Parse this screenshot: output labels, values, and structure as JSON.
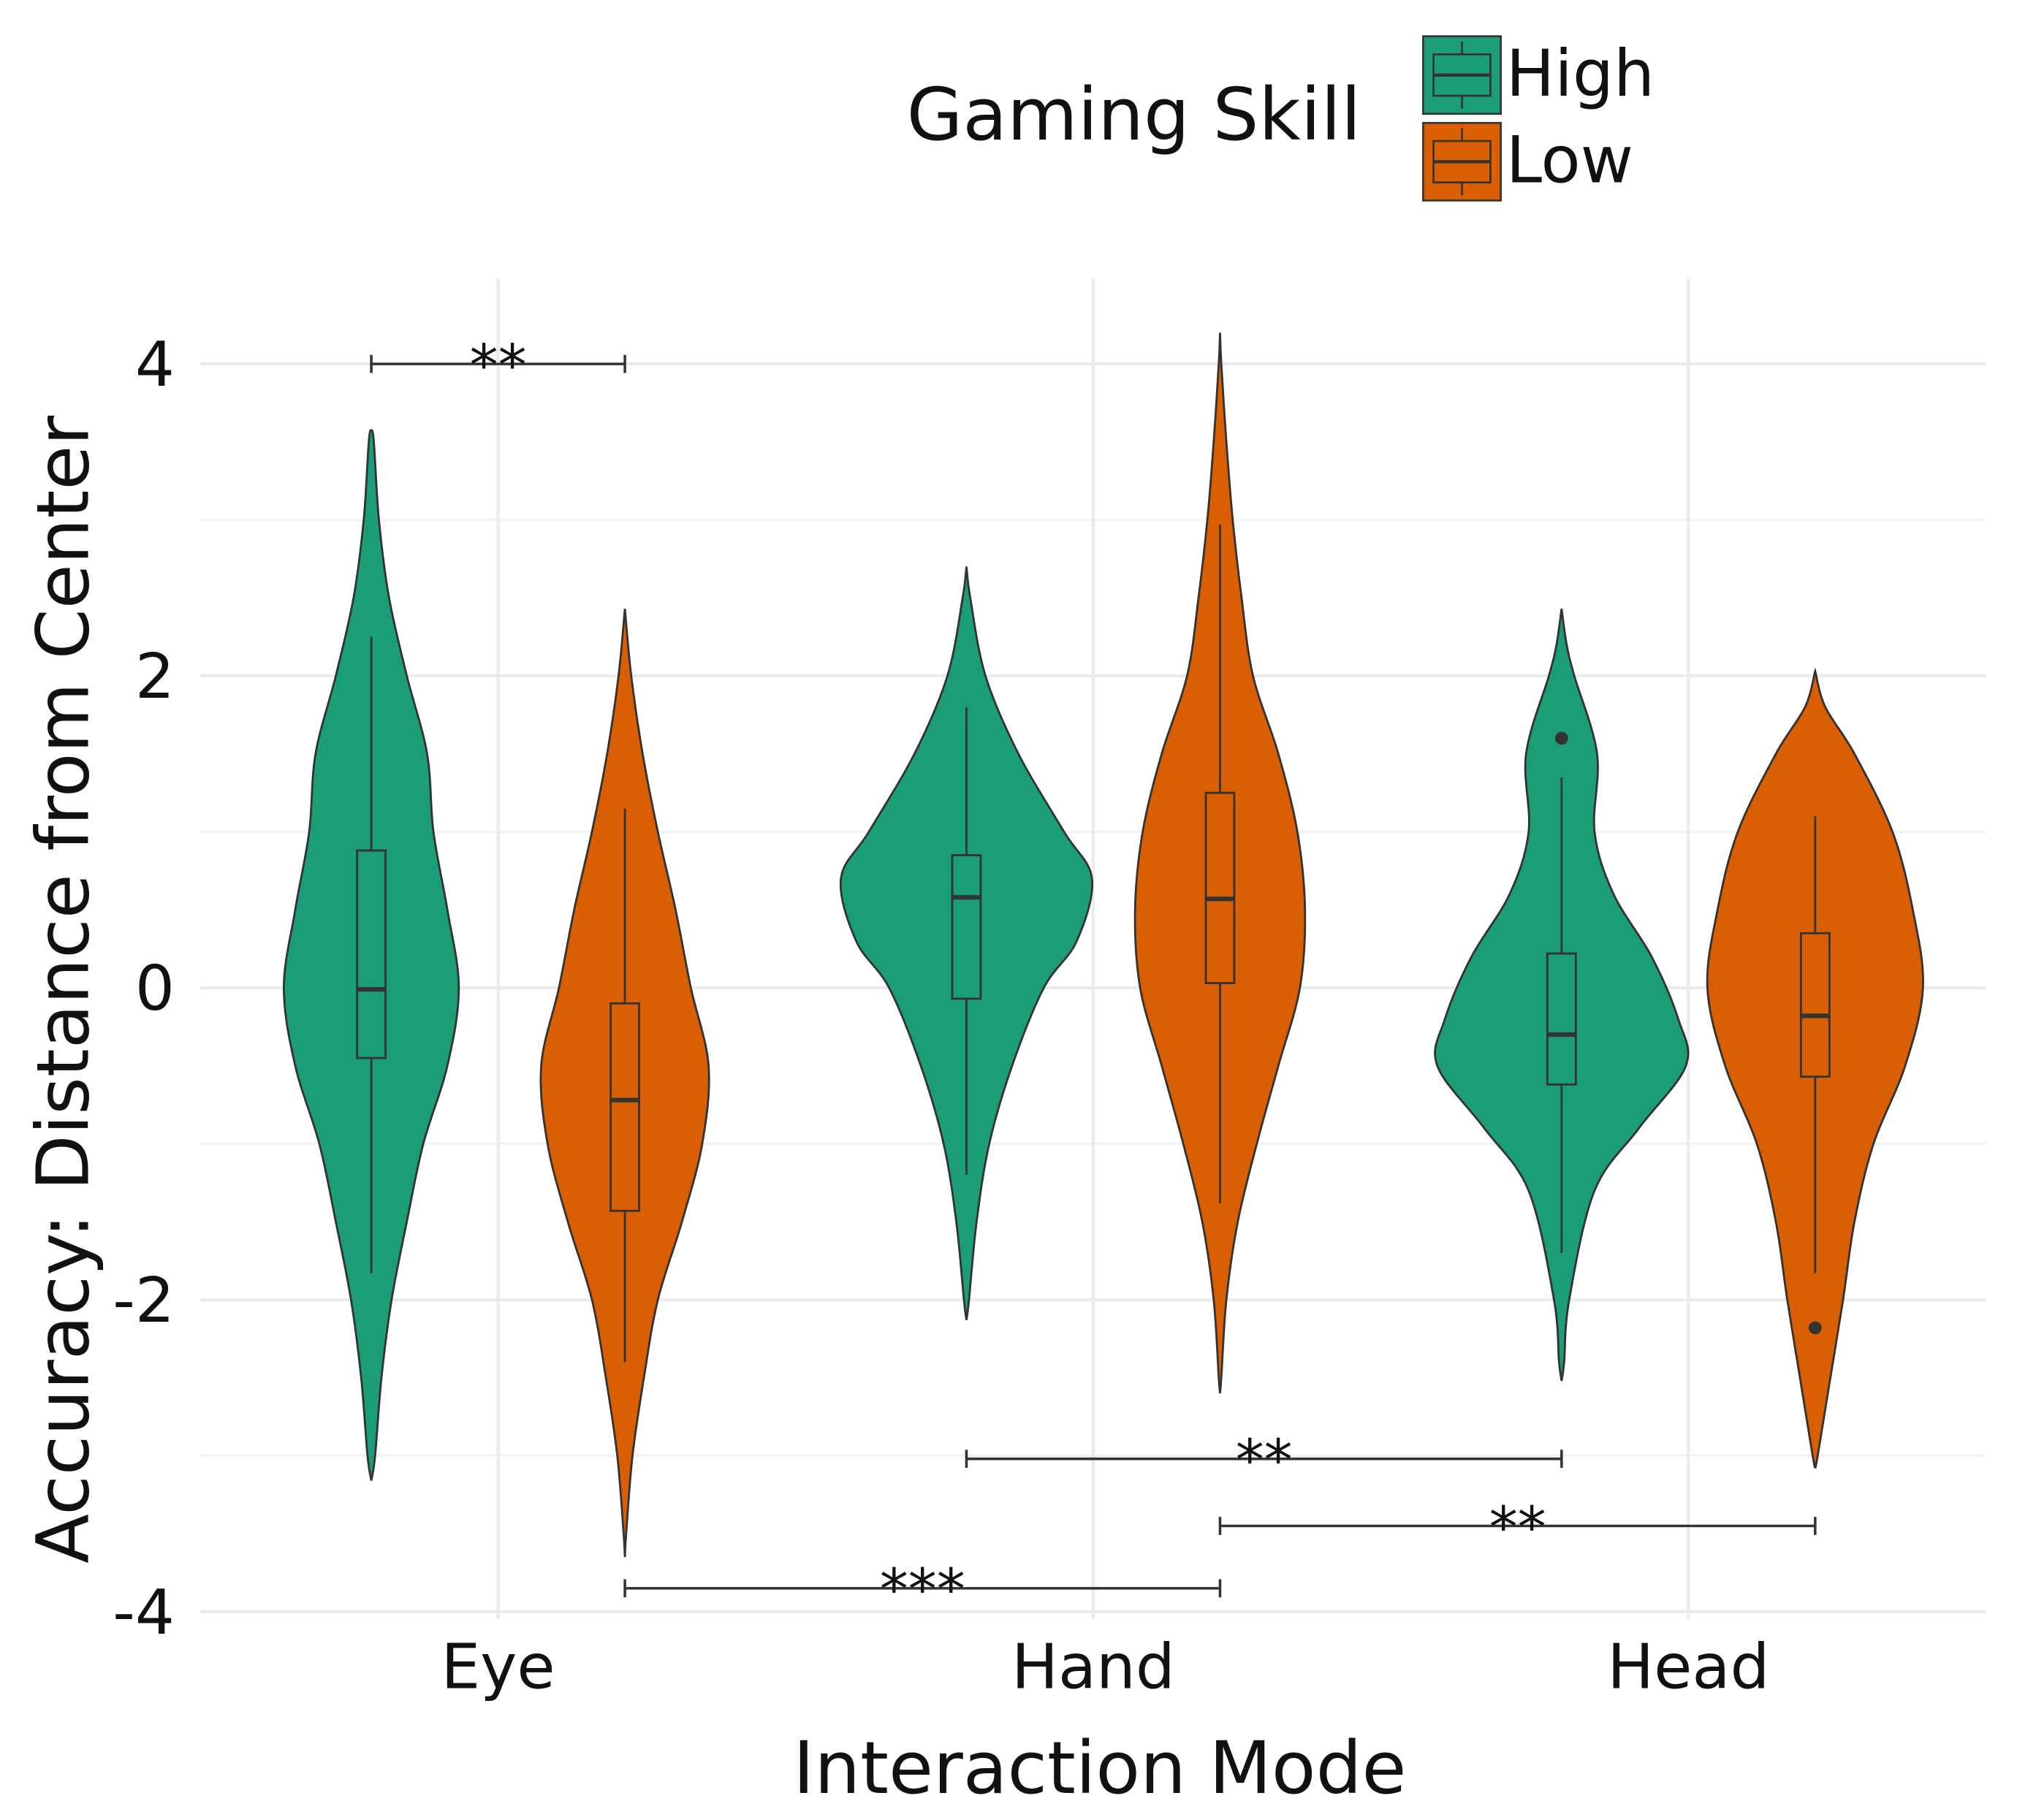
{
  "chart_data": {
    "type": "violin",
    "x_label": "Interaction Mode",
    "y_label": "Accuracy: Distance from Center",
    "legend_title": "Gaming Skill",
    "categories": [
      "Eye",
      "Hand",
      "Head"
    ],
    "ylim": [
      -4.05,
      4.55
    ],
    "yticks": [
      -4,
      -2,
      0,
      2,
      4
    ],
    "grid": true,
    "series": [
      {
        "name": "High",
        "color": "#1b9e77",
        "groups": [
          {
            "whisker_low": -1.83,
            "q1": -0.45,
            "median": -0.01,
            "q3": 0.88,
            "whisker_high": 2.25,
            "outliers": [],
            "density_y": [
              3.58,
              3.5,
              3,
              2.5,
              2,
              1.5,
              1,
              0.5,
              0,
              -0.5,
              -1,
              -1.5,
              -2,
              -2.5,
              -3,
              -3.16
            ],
            "density_w": [
              0,
              0.02,
              0.06,
              0.14,
              0.28,
              0.44,
              0.49,
              0.6,
              0.69,
              0.6,
              0.41,
              0.28,
              0.16,
              0.08,
              0.03,
              0
            ]
          },
          {
            "whisker_low": -1.2,
            "q1": -0.07,
            "median": 0.58,
            "q3": 0.85,
            "whisker_high": 1.8,
            "outliers": [],
            "density_y": [
              2.7,
              2.5,
              2,
              1.5,
              1,
              0.7,
              0.3,
              0,
              -0.5,
              -1,
              -1.5,
              -2,
              -2.13
            ],
            "density_w": [
              0,
              0.03,
              0.15,
              0.41,
              0.77,
              0.99,
              0.87,
              0.61,
              0.36,
              0.18,
              0.08,
              0.02,
              0
            ]
          },
          {
            "whisker_low": -1.7,
            "q1": -0.62,
            "median": -0.3,
            "q3": 0.22,
            "whisker_high": 1.35,
            "outliers": [
              1.6
            ],
            "density_y": [
              2.43,
              2.2,
              2,
              1.5,
              1,
              0.6,
              0.2,
              -0.2,
              -0.5,
              -0.9,
              -1.3,
              -2,
              -2.4,
              -2.52
            ],
            "density_w": [
              0,
              0.04,
              0.1,
              0.28,
              0.26,
              0.41,
              0.71,
              0.92,
              0.98,
              0.61,
              0.26,
              0.06,
              0.02,
              0
            ]
          }
        ]
      },
      {
        "name": "Low",
        "color": "#d95f02",
        "groups": [
          {
            "whisker_low": -2.4,
            "q1": -1.43,
            "median": -0.72,
            "q3": -0.1,
            "whisker_high": 1.15,
            "outliers": [],
            "density_y": [
              2.43,
              2,
              1.5,
              1,
              0.5,
              0,
              -0.5,
              -1,
              -1.5,
              -2,
              -2.5,
              -3,
              -3.5,
              -3.65
            ],
            "density_w": [
              0,
              0.05,
              0.14,
              0.26,
              0.4,
              0.52,
              0.66,
              0.61,
              0.45,
              0.26,
              0.15,
              0.06,
              0.01,
              0
            ]
          },
          {
            "whisker_low": -1.38,
            "q1": 0.03,
            "median": 0.57,
            "q3": 1.25,
            "whisker_high": 2.97,
            "outliers": [],
            "density_y": [
              4.2,
              4,
              3.5,
              3,
              2.5,
              2,
              1.5,
              1,
              0.5,
              0,
              -0.5,
              -1,
              -1.5,
              -2,
              -2.5,
              -2.6
            ],
            "density_w": [
              0,
              0.01,
              0.05,
              0.1,
              0.17,
              0.26,
              0.46,
              0.61,
              0.67,
              0.63,
              0.46,
              0.29,
              0.14,
              0.05,
              0.01,
              0
            ]
          },
          {
            "whisker_low": -1.83,
            "q1": -0.57,
            "median": -0.18,
            "q3": 0.35,
            "whisker_high": 1.1,
            "outliers": [
              -2.18
            ],
            "density_y": [
              2.03,
              1.8,
              1.5,
              1,
              0.5,
              0,
              -0.5,
              -1,
              -1.5,
              -2,
              -2.5,
              -3,
              -3.08
            ],
            "density_w": [
              0,
              0.08,
              0.31,
              0.61,
              0.77,
              0.85,
              0.71,
              0.46,
              0.31,
              0.22,
              0.12,
              0.02,
              0
            ]
          }
        ]
      }
    ],
    "annotations": [
      {
        "label": "**",
        "from": [
          0,
          0
        ],
        "to": [
          0,
          1
        ],
        "y": 4.0
      },
      {
        "label": "**",
        "from": [
          1,
          0
        ],
        "to": [
          2,
          0
        ],
        "y": -3.02
      },
      {
        "label": "**",
        "from": [
          1,
          1
        ],
        "to": [
          2,
          1
        ],
        "y": -3.45
      },
      {
        "label": "***",
        "from": [
          0,
          1
        ],
        "to": [
          1,
          1
        ],
        "y": -3.85
      }
    ]
  }
}
